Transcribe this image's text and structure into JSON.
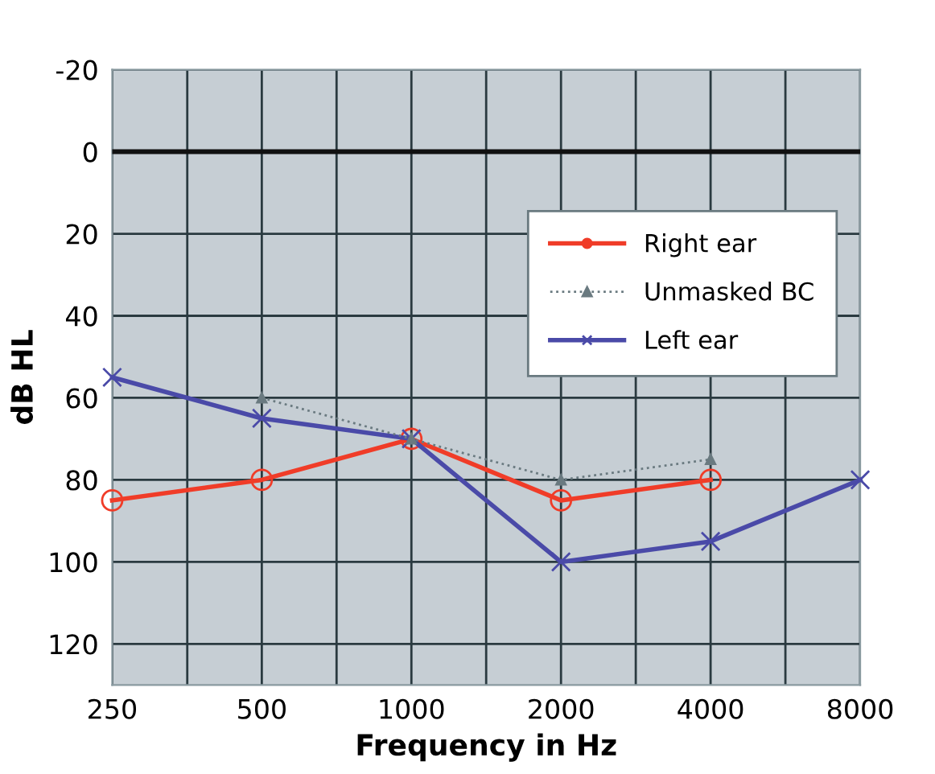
{
  "chart_data": {
    "type": "line",
    "xlabel": "Frequency in Hz",
    "ylabel": "dB HL",
    "log": "x",
    "x": [
      250,
      500,
      1000,
      2000,
      4000,
      8000
    ],
    "series": [
      {
        "name": "Right ear",
        "color": "#f03c28",
        "marker": "circle",
        "line_style": "solid",
        "values": [
          85,
          80,
          70,
          85,
          80,
          null
        ]
      },
      {
        "name": "Unmasked BC",
        "color": "#6a7a80",
        "marker": "triangle",
        "line_style": "dotted",
        "values": [
          null,
          60,
          70,
          80,
          75,
          null
        ]
      },
      {
        "name": "Left ear",
        "color": "#4a4aa8",
        "marker": "cross",
        "line_style": "solid",
        "values": [
          55,
          65,
          70,
          100,
          95,
          80
        ]
      }
    ],
    "xlim": [
      250,
      8000
    ],
    "xticks": [
      250,
      {
        "value": 354,
        "label": null
      },
      500,
      {
        "value": 707,
        "label": null
      },
      1000,
      {
        "value": 1414,
        "label": null
      },
      2000,
      {
        "value": 2828,
        "label": null
      },
      4000,
      {
        "value": 5657,
        "label": null
      },
      8000
    ],
    "ylim": [
      130,
      -20
    ],
    "yticks": [
      -20,
      0,
      20,
      40,
      60,
      80,
      100,
      120
    ],
    "ref_lines": [
      {
        "axis": "y",
        "value": 0,
        "color": "#111111"
      }
    ],
    "grid": true,
    "legend": "top right"
  }
}
